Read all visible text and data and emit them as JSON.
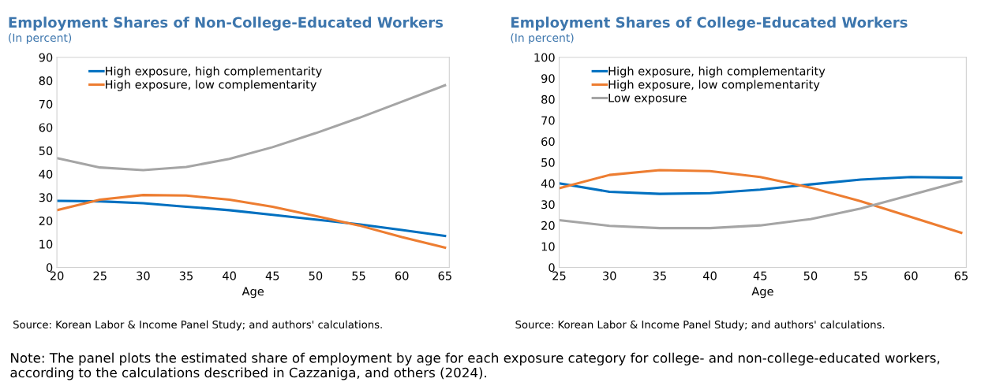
{
  "chart_data": [
    {
      "type": "line",
      "title": "Employment Shares of Non-College-Educated Workers",
      "subtitle": "(In percent)",
      "xlabel": "Age",
      "annotations": [
        "Source: Korean Labor & Income Panel Study; and authors' calculations.",
        "Note: The panel plots the estimated share of employment by age for each exposure category for college- and non-college-educated workers, according to the calculations described in Cazzaniga, and others (2024)."
      ],
      "x": [
        20,
        25,
        30,
        35,
        40,
        45,
        50,
        55,
        60,
        65
      ],
      "series": [
        {
          "name": "High exposure, high complementarity",
          "color": "#0070c0",
          "values": [
            28.5,
            28.3,
            27.5,
            26,
            24.5,
            22.5,
            20.5,
            18.5,
            16,
            13.5
          ]
        },
        {
          "name": "High exposure, low complementarity",
          "color": "#ed7d31",
          "values": [
            24.5,
            29,
            31,
            30.8,
            29,
            26,
            22,
            18,
            13,
            8.5
          ]
        },
        {
          "color": "#a5a5a5",
          "values": [
            46.8,
            42.8,
            41.7,
            43,
            46.5,
            51.5,
            57.5,
            64,
            71,
            78
          ]
        }
      ],
      "xlim": [
        20,
        65.5
      ],
      "xticks": [
        20,
        25,
        30,
        35,
        40,
        45,
        50,
        55,
        60,
        65
      ],
      "ylim": [
        0,
        90
      ],
      "yticks": [
        0,
        10,
        20,
        30,
        40,
        50,
        60,
        70,
        80,
        90
      ],
      "grid": false,
      "legend": "top left",
      "marker": "none",
      "line_style": "solid"
    },
    {
      "type": "line",
      "title": "Employment Shares of College-Educated Workers",
      "subtitle": "(In percent)",
      "xlabel": "Age",
      "annotations": [
        "Source: Korean Labor & Income Panel Study; and authors' calculations."
      ],
      "x": [
        25,
        30,
        35,
        40,
        45,
        50,
        55,
        60,
        65
      ],
      "series": [
        {
          "name": "High exposure, high complementarity",
          "color": "#0070c0",
          "values": [
            40,
            36,
            35,
            35.3,
            37,
            39.5,
            41.8,
            43,
            42.7
          ]
        },
        {
          "name": "High exposure, low complementarity",
          "color": "#ed7d31",
          "values": [
            37.7,
            44,
            46.3,
            45.8,
            43,
            38,
            31.5,
            24,
            16.5
          ]
        },
        {
          "name": "Low exposure",
          "color": "#a5a5a5",
          "values": [
            22.5,
            19.8,
            18.7,
            18.7,
            20,
            23,
            28,
            34.5,
            41
          ]
        }
      ],
      "xlim": [
        25,
        65.5
      ],
      "xticks": [
        25,
        30,
        35,
        40,
        45,
        50,
        55,
        60,
        65
      ],
      "ylim": [
        0,
        100
      ],
      "yticks": [
        0,
        10,
        20,
        30,
        40,
        50,
        60,
        70,
        80,
        90,
        100
      ],
      "grid": false,
      "legend": "top left",
      "marker": "none",
      "line_style": "solid"
    }
  ]
}
